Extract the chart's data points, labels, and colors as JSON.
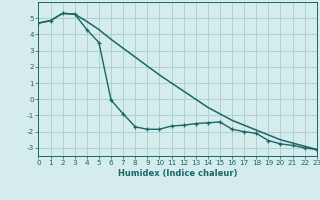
{
  "xlabel": "Humidex (Indice chaleur)",
  "ylabel": "",
  "bg_color": "#d4ecec",
  "grid_color": "#aacccc",
  "line_color": "#1a6666",
  "line1_x": [
    0,
    1,
    2,
    3,
    4,
    5,
    6,
    7,
    8,
    9,
    10,
    11,
    12,
    13,
    14,
    15,
    16,
    17,
    18,
    19,
    20,
    21,
    22,
    23
  ],
  "line1_y": [
    4.7,
    4.85,
    5.3,
    5.25,
    4.8,
    4.3,
    3.7,
    3.15,
    2.6,
    2.05,
    1.5,
    1.0,
    0.5,
    0.0,
    -0.5,
    -0.9,
    -1.3,
    -1.6,
    -1.9,
    -2.2,
    -2.5,
    -2.7,
    -2.9,
    -3.1
  ],
  "line2_x": [
    0,
    1,
    2,
    3,
    4,
    5,
    6,
    7,
    8,
    9,
    10,
    11,
    12,
    13,
    14,
    15,
    16,
    17,
    18,
    19,
    20,
    21,
    22,
    23
  ],
  "line2_y": [
    4.7,
    4.85,
    5.3,
    5.25,
    4.3,
    3.5,
    -0.05,
    -0.9,
    -1.7,
    -1.85,
    -1.85,
    -1.65,
    -1.6,
    -1.5,
    -1.45,
    -1.4,
    -1.85,
    -2.0,
    -2.1,
    -2.55,
    -2.75,
    -2.85,
    -3.0,
    -3.1
  ],
  "xlim": [
    0,
    23
  ],
  "ylim": [
    -3.5,
    6.0
  ],
  "yticks": [
    -3,
    -2,
    -1,
    0,
    1,
    2,
    3,
    4,
    5
  ],
  "xticks": [
    0,
    1,
    2,
    3,
    4,
    5,
    6,
    7,
    8,
    9,
    10,
    11,
    12,
    13,
    14,
    15,
    16,
    17,
    18,
    19,
    20,
    21,
    22,
    23
  ],
  "tick_fontsize": 5.2,
  "xlabel_fontsize": 6.0
}
